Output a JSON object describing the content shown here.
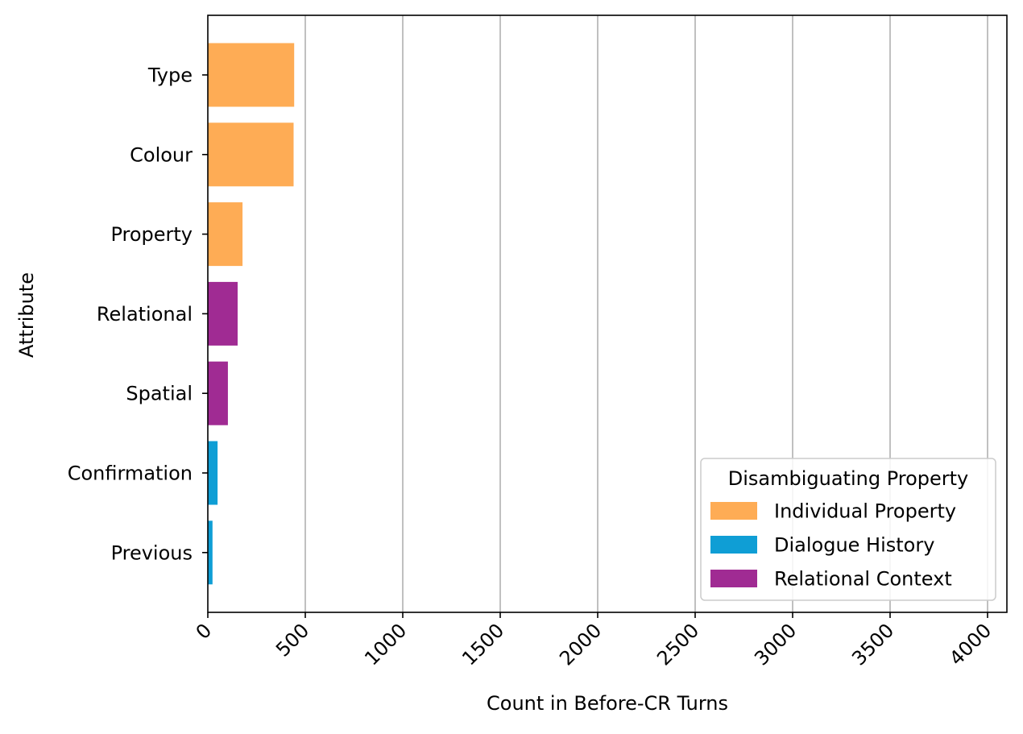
{
  "chart_data": {
    "type": "bar",
    "orientation": "horizontal",
    "title": "",
    "xlabel": "Count in Before-CR Turns",
    "ylabel": "Attribute",
    "xlim": [
      0,
      4100
    ],
    "xticks": [
      0,
      500,
      1000,
      1500,
      2000,
      2500,
      3000,
      3500,
      4000
    ],
    "x_tick_labels": [
      "0",
      "500",
      "1000",
      "1500",
      "2000",
      "2500",
      "3000",
      "3500",
      "4000"
    ],
    "grid": "vertical",
    "categories": [
      "Type",
      "Colour",
      "Property",
      "Relational",
      "Spatial",
      "Confirmation",
      "Previous"
    ],
    "values": [
      443,
      440,
      178,
      153,
      103,
      50,
      24
    ],
    "bar_groups": [
      "Individual Property",
      "Individual Property",
      "Individual Property",
      "Relational Context",
      "Relational Context",
      "Dialogue History",
      "Dialogue History"
    ],
    "legend": {
      "title": "Disambiguating Property",
      "placement": "lower-right",
      "entries": [
        {
          "label": "Individual Property",
          "color": "#FEAC55"
        },
        {
          "label": "Dialogue History",
          "color": "#0F9ED5"
        },
        {
          "label": "Relational Context",
          "color": "#A02B93"
        }
      ]
    }
  }
}
